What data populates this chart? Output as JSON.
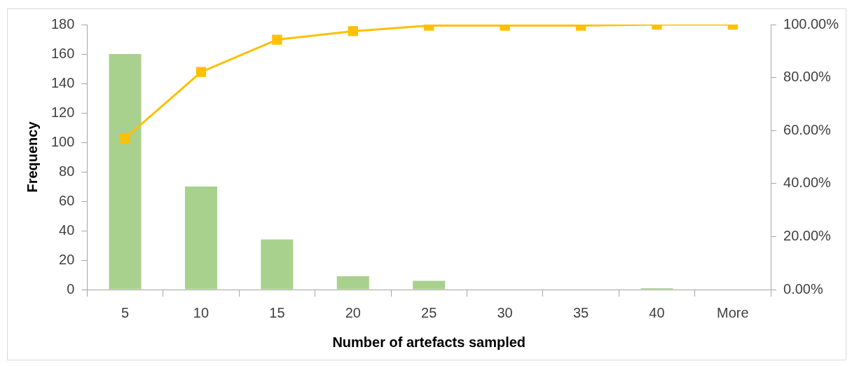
{
  "chart_data": {
    "type": "bar",
    "xlabel": "Number of artefacts sampled",
    "ylabel": "Frequency",
    "categories": [
      "5",
      "10",
      "15",
      "20",
      "25",
      "30",
      "35",
      "40",
      "More"
    ],
    "series": [
      {
        "color": "#a9d18e",
        "values": [
          160,
          70,
          34,
          9,
          6,
          0,
          0,
          1,
          0
        ]
      },
      {
        "type": "line",
        "axis": "y2",
        "color": "#ffc000",
        "marker": "square",
        "values": [
          57.1,
          82.1,
          94.3,
          97.5,
          99.6,
          99.6,
          99.6,
          100,
          100
        ]
      }
    ],
    "ylim": [
      0,
      180
    ],
    "yticks": [
      0,
      20,
      40,
      60,
      80,
      100,
      120,
      140,
      160,
      180
    ],
    "y2lim": [
      0,
      100
    ],
    "y2ticks": [
      {
        "value": 0,
        "label": "0.00%"
      },
      {
        "value": 20,
        "label": "20.00%"
      },
      {
        "value": 40,
        "label": "40.00%"
      },
      {
        "value": 60,
        "label": "60.00%"
      },
      {
        "value": 80,
        "label": "80.00%"
      },
      {
        "value": 100,
        "label": "100.00%"
      }
    ],
    "grid": false,
    "legend": false
  }
}
